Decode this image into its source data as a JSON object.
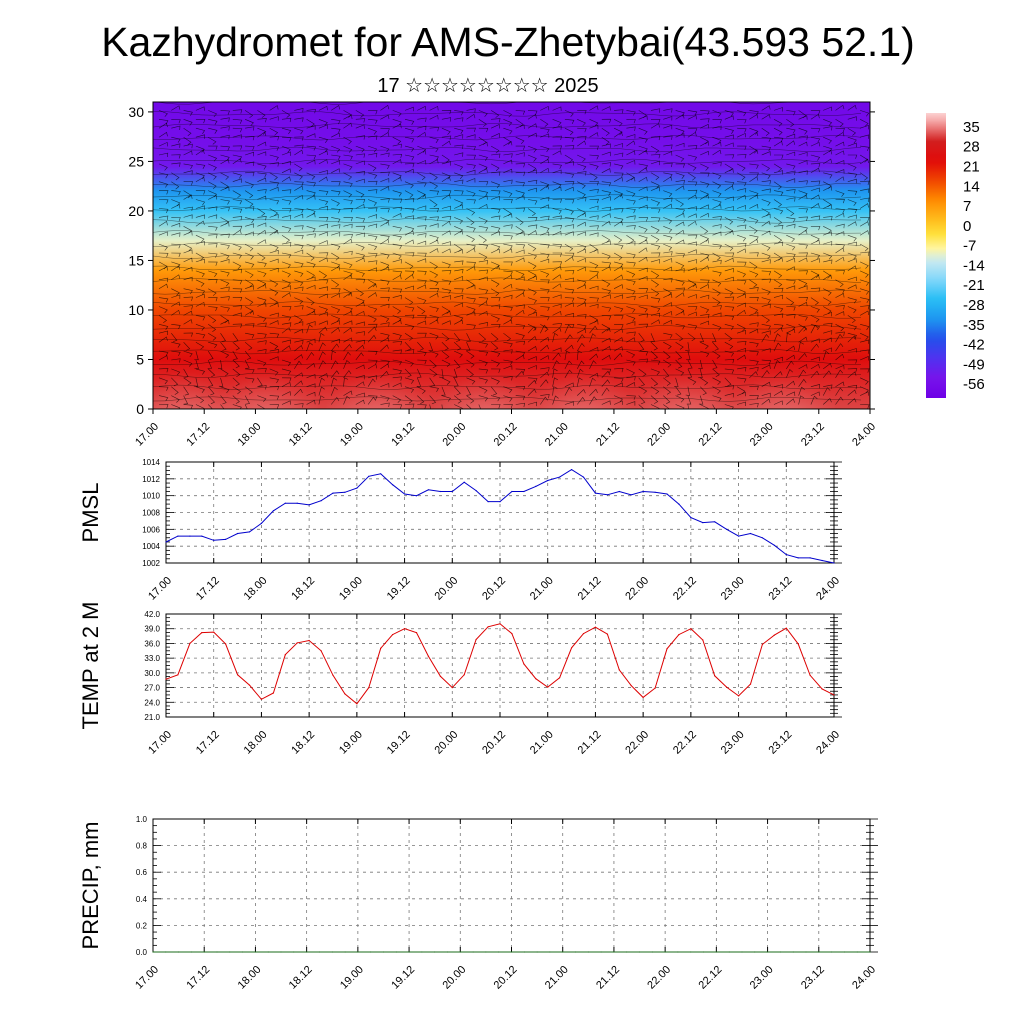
{
  "figure": {
    "title": "Kazhydromet for AMS-Zhetybai(43.593 52.1)",
    "subtitle": "17 ☆☆☆☆☆☆☆☆ 2025"
  },
  "chart_data": [
    {
      "type": "heatmap",
      "title": "",
      "xlabel": "",
      "ylabel": "",
      "x_ticks": [
        "17.00",
        "17.12",
        "18.00",
        "18.12",
        "19.00",
        "19.12",
        "20.00",
        "20.12",
        "21.00",
        "21.12",
        "22.00",
        "22.12",
        "23.00",
        "23.12",
        "24.00"
      ],
      "y_ticks": [
        0,
        5,
        10,
        15,
        20,
        25,
        30
      ],
      "ylim": [
        0,
        31
      ],
      "overlay": "wind barbs",
      "colorbar": {
        "labels": [
          35,
          28,
          21,
          14,
          7,
          0,
          -7,
          -14,
          -21,
          -28,
          -35,
          -42,
          -49,
          -56
        ],
        "range": [
          -63,
          38
        ]
      },
      "temperature_profile": [
        {
          "level": 0,
          "value": 30
        },
        {
          "level": 5,
          "value": 22
        },
        {
          "level": 10,
          "value": 14
        },
        {
          "level": 14,
          "value": 5
        },
        {
          "level": 17,
          "value": -12
        },
        {
          "level": 20,
          "value": -27
        },
        {
          "level": 22,
          "value": -35
        },
        {
          "level": 24.5,
          "value": -55
        },
        {
          "level": 27,
          "value": -58
        },
        {
          "level": 31,
          "value": -60
        }
      ],
      "surface_warm_cores": [
        17.3,
        18.1,
        19.2,
        20.25,
        21.2,
        22.2,
        23.15
      ]
    },
    {
      "type": "line",
      "ylabel": "PMSL",
      "ylim": [
        1002,
        1014
      ],
      "y_ticks": [
        1002,
        1004,
        1006,
        1008,
        1010,
        1012,
        1014
      ],
      "x_ticks": [
        "17.00",
        "17.12",
        "18.00",
        "18.12",
        "19.00",
        "19.12",
        "20.00",
        "20.12",
        "21.00",
        "21.12",
        "22.00",
        "22.12",
        "23.00",
        "23.12",
        "24.00"
      ],
      "series": [
        {
          "color": "#0000cc",
          "x_step_hours": 3,
          "values": [
            1004.5,
            1005.2,
            1005.2,
            1005.2,
            1004.7,
            1004.8,
            1005.5,
            1005.7,
            1006.7,
            1008.2,
            1009.1,
            1009.1,
            1008.9,
            1009.4,
            1010.3,
            1010.4,
            1010.9,
            1012.3,
            1012.6,
            1011.3,
            1010.2,
            1010.0,
            1010.7,
            1010.5,
            1010.5,
            1011.6,
            1010.6,
            1009.3,
            1009.3,
            1010.5,
            1010.5,
            1011.1,
            1011.8,
            1012.2,
            1013.1,
            1012.2,
            1010.3,
            1010.1,
            1010.5,
            1010.1,
            1010.5,
            1010.4,
            1010.2,
            1009.0,
            1007.4,
            1006.8,
            1006.9,
            1006.0,
            1005.2,
            1005.5,
            1005.0,
            1004.1,
            1003.0,
            1002.6,
            1002.6,
            1002.3,
            1002.0
          ]
        }
      ]
    },
    {
      "type": "line",
      "ylabel": "TEMP at 2 M",
      "ylim": [
        21.0,
        42.0
      ],
      "y_ticks": [
        "21.0",
        "24.0",
        "27.0",
        "30.0",
        "33.0",
        "36.0",
        "39.0",
        "42.0"
      ],
      "x_ticks": [
        "17.00",
        "17.12",
        "18.00",
        "18.12",
        "19.00",
        "19.12",
        "20.00",
        "20.12",
        "21.00",
        "21.12",
        "22.00",
        "22.12",
        "23.00",
        "23.12",
        "24.00"
      ],
      "series": [
        {
          "color": "#dd0000",
          "x_step_hours": 3,
          "values": [
            28.7,
            29.6,
            36.0,
            38.2,
            38.3,
            35.9,
            29.6,
            27.5,
            24.6,
            25.9,
            33.7,
            36.1,
            36.6,
            34.5,
            29.5,
            25.7,
            23.7,
            27.0,
            35.0,
            37.8,
            39.0,
            38.2,
            33.4,
            29.3,
            27.0,
            29.6,
            36.8,
            39.4,
            40.0,
            38.0,
            31.8,
            28.8,
            27.1,
            29.0,
            35.1,
            38.0,
            39.3,
            37.9,
            30.6,
            27.4,
            25.0,
            26.9,
            34.9,
            37.8,
            39.0,
            36.7,
            29.4,
            27.1,
            25.3,
            27.7,
            35.8,
            37.7,
            39.1,
            35.9,
            29.5,
            26.7,
            25.5
          ]
        }
      ]
    },
    {
      "type": "line",
      "ylabel": "PRECIP, mm",
      "ylim": [
        0.0,
        1.0
      ],
      "y_ticks": [
        "0.0",
        "0.2",
        "0.4",
        "0.6",
        "0.8",
        "1.0"
      ],
      "x_ticks": [
        "17.00",
        "17.12",
        "18.00",
        "18.12",
        "19.00",
        "19.12",
        "20.00",
        "20.12",
        "21.00",
        "21.12",
        "22.00",
        "22.12",
        "23.00",
        "23.12",
        "24.00"
      ],
      "series": [
        {
          "color": "#1a6b1a",
          "x_step_hours": 3,
          "values": [
            0,
            0,
            0,
            0,
            0,
            0,
            0,
            0,
            0,
            0,
            0,
            0,
            0,
            0,
            0,
            0,
            0,
            0,
            0,
            0,
            0,
            0,
            0,
            0,
            0,
            0,
            0,
            0,
            0,
            0,
            0,
            0,
            0,
            0,
            0,
            0,
            0,
            0,
            0,
            0,
            0,
            0,
            0,
            0,
            0,
            0,
            0,
            0,
            0,
            0,
            0,
            0,
            0,
            0,
            0,
            0,
            0
          ]
        }
      ]
    }
  ]
}
